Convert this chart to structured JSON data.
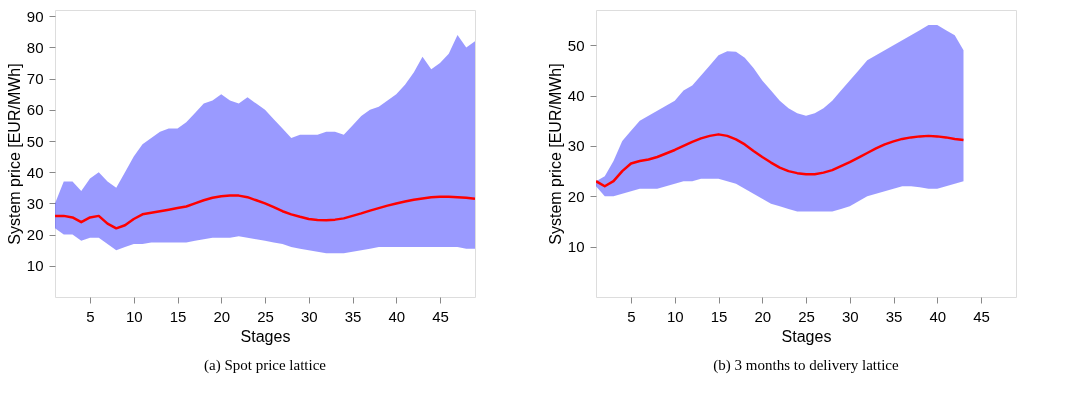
{
  "chart_data": [
    {
      "type": "line",
      "xlabel": "Stages",
      "ylabel": "System price [EUR/MWh]",
      "annotations": [
        "(a)  Spot price lattice"
      ],
      "x": [
        1,
        2,
        3,
        4,
        5,
        6,
        7,
        8,
        9,
        10,
        11,
        12,
        13,
        14,
        15,
        16,
        17,
        18,
        19,
        20,
        21,
        22,
        23,
        24,
        25,
        26,
        27,
        28,
        29,
        30,
        31,
        32,
        33,
        34,
        35,
        36,
        37,
        38,
        39,
        40,
        41,
        42,
        43,
        44,
        45,
        46,
        47,
        48,
        49
      ],
      "xlim": [
        1,
        49
      ],
      "xticks": [
        5,
        10,
        15,
        20,
        25,
        30,
        35,
        40,
        45
      ],
      "ylim": [
        0,
        92
      ],
      "yticks": [
        10,
        20,
        30,
        40,
        50,
        60,
        70,
        80,
        90
      ],
      "grid": false,
      "marker": "none",
      "series": [
        {
          "color": "#ff0000",
          "values": [
            26,
            26,
            25.5,
            24,
            25.5,
            26,
            23.5,
            22,
            23,
            25,
            26.5,
            27,
            27.5,
            28,
            28.5,
            29,
            30,
            31,
            31.8,
            32.3,
            32.5,
            32.5,
            32,
            31,
            30,
            28.8,
            27.5,
            26.5,
            25.7,
            25,
            24.7,
            24.6,
            24.8,
            25.2,
            26,
            26.8,
            27.7,
            28.5,
            29.3,
            30,
            30.6,
            31.2,
            31.6,
            32,
            32.1,
            32.1,
            32,
            31.8,
            31.5
          ],
          "lower": [
            22,
            20,
            20,
            18,
            19,
            19,
            17,
            15,
            16,
            17,
            17,
            17.5,
            17.5,
            17.5,
            17.5,
            17.5,
            18,
            18.5,
            19,
            19,
            19,
            19.5,
            19,
            18.5,
            18,
            17.5,
            17,
            16,
            15.5,
            15,
            14.5,
            14,
            14,
            14,
            14.5,
            15,
            15.5,
            16,
            16,
            16,
            16,
            16,
            16,
            16,
            16,
            16,
            16,
            15.5,
            15.5
          ],
          "upper": [
            30,
            37,
            37,
            34,
            38,
            40,
            37,
            35,
            40,
            45,
            49,
            51,
            53,
            54,
            54,
            56,
            59,
            62,
            63,
            65,
            63,
            62,
            64,
            62,
            60,
            57,
            54,
            51,
            52,
            52,
            52,
            53,
            53,
            52,
            55,
            58,
            60,
            61,
            63,
            65,
            68,
            72,
            77,
            73,
            75,
            78,
            84,
            80,
            82
          ]
        }
      ]
    },
    {
      "type": "line",
      "xlabel": "Stages",
      "ylabel": "System price [EUR/MWh]",
      "annotations": [
        "(b)  3 months to delivery lattice"
      ],
      "x": [
        1,
        2,
        3,
        4,
        5,
        6,
        7,
        8,
        9,
        10,
        11,
        12,
        13,
        14,
        15,
        16,
        17,
        18,
        19,
        20,
        21,
        22,
        23,
        24,
        25,
        26,
        27,
        28,
        29,
        30,
        31,
        32,
        33,
        34,
        35,
        36,
        37,
        38,
        39,
        40,
        41,
        42,
        43
      ],
      "xlim": [
        1,
        49
      ],
      "xticks": [
        5,
        10,
        15,
        20,
        25,
        30,
        35,
        40,
        45
      ],
      "ylim": [
        0,
        57
      ],
      "yticks": [
        10,
        20,
        30,
        40,
        50
      ],
      "grid": false,
      "marker": "none",
      "series": [
        {
          "color": "#ff0000",
          "values": [
            23,
            22,
            23,
            25,
            26.5,
            27,
            27.3,
            27.8,
            28.5,
            29.2,
            30,
            30.8,
            31.5,
            32,
            32.3,
            32,
            31.3,
            30.3,
            29,
            27.8,
            26.7,
            25.7,
            25,
            24.6,
            24.4,
            24.4,
            24.7,
            25.2,
            26,
            26.8,
            27.7,
            28.6,
            29.5,
            30.3,
            30.9,
            31.4,
            31.7,
            31.9,
            32,
            31.9,
            31.7,
            31.4,
            31.2
          ],
          "lower": [
            22,
            20,
            20,
            20.5,
            21,
            21.5,
            21.5,
            21.5,
            22,
            22.5,
            23,
            23,
            23.5,
            23.5,
            23.5,
            23,
            22.5,
            21.5,
            20.5,
            19.5,
            18.5,
            18,
            17.5,
            17,
            17,
            17,
            17,
            17,
            17.5,
            18,
            19,
            20,
            20.5,
            21,
            21.5,
            22,
            22,
            21.8,
            21.5,
            21.5,
            22,
            22.5,
            23
          ],
          "upper": [
            23,
            24,
            27,
            31,
            33,
            35,
            36,
            37,
            38,
            39,
            41,
            42,
            44,
            46,
            48,
            48.8,
            48.7,
            47.5,
            45.5,
            43,
            41,
            39,
            37.5,
            36.5,
            36,
            36.5,
            37.5,
            39,
            41,
            43,
            45,
            47,
            48,
            49,
            50,
            51,
            52,
            53,
            54,
            54,
            53,
            52,
            49
          ]
        }
      ]
    }
  ]
}
